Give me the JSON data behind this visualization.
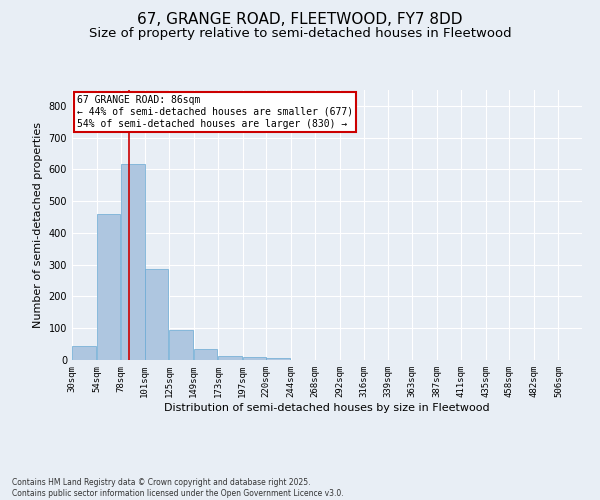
{
  "title1": "67, GRANGE ROAD, FLEETWOOD, FY7 8DD",
  "title2": "Size of property relative to semi-detached houses in Fleetwood",
  "xlabel": "Distribution of semi-detached houses by size in Fleetwood",
  "ylabel": "Number of semi-detached properties",
  "bin_labels": [
    "30sqm",
    "54sqm",
    "78sqm",
    "101sqm",
    "125sqm",
    "149sqm",
    "173sqm",
    "197sqm",
    "220sqm",
    "244sqm",
    "268sqm",
    "292sqm",
    "316sqm",
    "339sqm",
    "363sqm",
    "387sqm",
    "411sqm",
    "435sqm",
    "458sqm",
    "482sqm",
    "506sqm"
  ],
  "bin_edges": [
    30,
    54,
    78,
    101,
    125,
    149,
    173,
    197,
    220,
    244,
    268,
    292,
    316,
    339,
    363,
    387,
    411,
    435,
    458,
    482,
    506
  ],
  "bar_values": [
    45,
    460,
    617,
    288,
    93,
    35,
    12,
    8,
    5,
    0,
    0,
    0,
    0,
    0,
    0,
    0,
    0,
    0,
    0,
    0,
    0
  ],
  "bar_color": "#aec6e0",
  "bar_edge_color": "#6aaad4",
  "background_color": "#e8eef5",
  "grid_color": "#ffffff",
  "red_line_x": 86,
  "annotation_title": "67 GRANGE ROAD: 86sqm",
  "annotation_line1": "← 44% of semi-detached houses are smaller (677)",
  "annotation_line2": "54% of semi-detached houses are larger (830) →",
  "annotation_box_color": "#ffffff",
  "annotation_border_color": "#cc0000",
  "ylim": [
    0,
    850
  ],
  "yticks": [
    0,
    100,
    200,
    300,
    400,
    500,
    600,
    700,
    800
  ],
  "footer1": "Contains HM Land Registry data © Crown copyright and database right 2025.",
  "footer2": "Contains public sector information licensed under the Open Government Licence v3.0.",
  "title1_fontsize": 11,
  "title2_fontsize": 9.5,
  "tick_fontsize": 6.5,
  "ylabel_fontsize": 8,
  "xlabel_fontsize": 8,
  "annotation_fontsize": 7,
  "footer_fontsize": 5.5
}
